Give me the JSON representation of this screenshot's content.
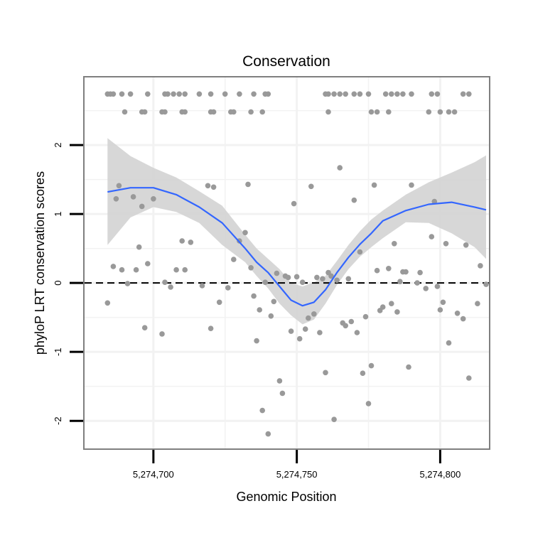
{
  "chart_data": {
    "type": "scatter",
    "title": "Conservation",
    "xlabel": "Genomic Position",
    "ylabel": "phyloP LRT conservation scores",
    "xlim": [
      5274676,
      5274817
    ],
    "ylim": [
      -2.4,
      2.98
    ],
    "x_ticks": [
      5274700,
      5274750,
      5274800
    ],
    "x_tick_labels": [
      "5,274,700",
      "5,274,750",
      "5,274,800"
    ],
    "y_ticks": [
      -2,
      -1,
      0,
      1,
      2
    ],
    "y_tick_labels": [
      "-2",
      "-1",
      "0",
      "1",
      "2"
    ],
    "grid": true,
    "reference_line": {
      "y": 0,
      "style": "dashed"
    },
    "colors": {
      "points": "#999999",
      "smooth": "#3366ff",
      "band": "#d3d3d3",
      "panel_border": "#7f7f7f",
      "grid": "#f2f2f2"
    },
    "series": [
      {
        "type": "points",
        "points": [
          [
            5274684,
            2.74
          ],
          [
            5274685,
            2.74
          ],
          [
            5274686,
            2.74
          ],
          [
            5274689,
            2.74
          ],
          [
            5274692,
            2.74
          ],
          [
            5274698,
            2.74
          ],
          [
            5274704,
            2.74
          ],
          [
            5274705,
            2.74
          ],
          [
            5274707,
            2.74
          ],
          [
            5274709,
            2.74
          ],
          [
            5274711,
            2.74
          ],
          [
            5274716,
            2.74
          ],
          [
            5274720,
            2.74
          ],
          [
            5274725,
            2.74
          ],
          [
            5274730,
            2.74
          ],
          [
            5274735,
            2.74
          ],
          [
            5274740,
            2.74
          ],
          [
            5274739,
            2.74
          ],
          [
            5274690,
            2.48
          ],
          [
            5274696,
            2.48
          ],
          [
            5274697,
            2.48
          ],
          [
            5274703,
            2.48
          ],
          [
            5274704,
            2.48
          ],
          [
            5274710,
            2.48
          ],
          [
            5274711,
            2.48
          ],
          [
            5274720,
            2.48
          ],
          [
            5274721,
            2.48
          ],
          [
            5274727,
            2.48
          ],
          [
            5274728,
            2.48
          ],
          [
            5274734,
            2.48
          ],
          [
            5274738,
            2.48
          ],
          [
            5274760,
            2.74
          ],
          [
            5274761,
            2.74
          ],
          [
            5274763,
            2.74
          ],
          [
            5274765,
            2.74
          ],
          [
            5274767,
            2.74
          ],
          [
            5274770,
            2.74
          ],
          [
            5274772,
            2.74
          ],
          [
            5274775,
            2.74
          ],
          [
            5274781,
            2.74
          ],
          [
            5274783,
            2.74
          ],
          [
            5274785,
            2.74
          ],
          [
            5274787,
            2.74
          ],
          [
            5274790,
            2.74
          ],
          [
            5274797,
            2.74
          ],
          [
            5274799,
            2.74
          ],
          [
            5274808,
            2.74
          ],
          [
            5274810,
            2.74
          ],
          [
            5274761,
            2.48
          ],
          [
            5274776,
            2.48
          ],
          [
            5274778,
            2.48
          ],
          [
            5274782,
            2.48
          ],
          [
            5274796,
            2.48
          ],
          [
            5274800,
            2.48
          ],
          [
            5274803,
            2.48
          ],
          [
            5274805,
            2.48
          ],
          [
            5274684,
            -0.29
          ],
          [
            5274686,
            0.24
          ],
          [
            5274687,
            1.22
          ],
          [
            5274688,
            1.41
          ],
          [
            5274689,
            0.19
          ],
          [
            5274691,
            -0.01
          ],
          [
            5274693,
            1.25
          ],
          [
            5274694,
            0.19
          ],
          [
            5274695,
            0.52
          ],
          [
            5274696,
            1.11
          ],
          [
            5274697,
            -0.65
          ],
          [
            5274698,
            0.28
          ],
          [
            5274700,
            1.22
          ],
          [
            5274703,
            -0.74
          ],
          [
            5274704,
            0.01
          ],
          [
            5274706,
            -0.06
          ],
          [
            5274708,
            0.19
          ],
          [
            5274710,
            0.61
          ],
          [
            5274711,
            0.19
          ],
          [
            5274713,
            0.59
          ],
          [
            5274717,
            -0.04
          ],
          [
            5274719,
            1.41
          ],
          [
            5274720,
            -0.66
          ],
          [
            5274721,
            1.39
          ],
          [
            5274723,
            -0.28
          ],
          [
            5274726,
            -0.07
          ],
          [
            5274728,
            0.34
          ],
          [
            5274730,
            0.61
          ],
          [
            5274732,
            0.73
          ],
          [
            5274733,
            1.43
          ],
          [
            5274734,
            0.22
          ],
          [
            5274735,
            -0.19
          ],
          [
            5274736,
            -0.84
          ],
          [
            5274737,
            -0.39
          ],
          [
            5274738,
            -1.85
          ],
          [
            5274739,
            0.01
          ],
          [
            5274740,
            -2.19
          ],
          [
            5274741,
            -0.48
          ],
          [
            5274742,
            -0.27
          ],
          [
            5274743,
            0.14
          ],
          [
            5274744,
            -1.42
          ],
          [
            5274745,
            -1.6
          ],
          [
            5274746,
            0.1
          ],
          [
            5274747,
            0.08
          ],
          [
            5274748,
            -0.7
          ],
          [
            5274749,
            1.15
          ],
          [
            5274750,
            0.09
          ],
          [
            5274751,
            -0.81
          ],
          [
            5274752,
            0.01
          ],
          [
            5274753,
            -0.67
          ],
          [
            5274754,
            -0.51
          ],
          [
            5274755,
            1.4
          ],
          [
            5274756,
            -0.45
          ],
          [
            5274757,
            0.08
          ],
          [
            5274758,
            -0.72
          ],
          [
            5274759,
            0.06
          ],
          [
            5274760,
            -1.3
          ],
          [
            5274761,
            0.15
          ],
          [
            5274762,
            0.1
          ],
          [
            5274763,
            -1.98
          ],
          [
            5274764,
            0.04
          ],
          [
            5274765,
            1.67
          ],
          [
            5274766,
            -0.58
          ],
          [
            5274767,
            -0.62
          ],
          [
            5274768,
            0.06
          ],
          [
            5274769,
            -0.56
          ],
          [
            5274770,
            1.2
          ],
          [
            5274771,
            -0.72
          ],
          [
            5274772,
            0.45
          ],
          [
            5274773,
            -1.31
          ],
          [
            5274774,
            -0.49
          ],
          [
            5274775,
            -1.75
          ],
          [
            5274776,
            -1.2
          ],
          [
            5274777,
            1.42
          ],
          [
            5274778,
            0.18
          ],
          [
            5274779,
            -0.4
          ],
          [
            5274780,
            -0.35
          ],
          [
            5274782,
            0.21
          ],
          [
            5274783,
            -0.3
          ],
          [
            5274784,
            0.57
          ],
          [
            5274785,
            -0.42
          ],
          [
            5274786,
            0.02
          ],
          [
            5274787,
            0.16
          ],
          [
            5274788,
            0.16
          ],
          [
            5274789,
            -1.22
          ],
          [
            5274790,
            1.42
          ],
          [
            5274792,
            0.0
          ],
          [
            5274793,
            0.15
          ],
          [
            5274795,
            -0.08
          ],
          [
            5274797,
            0.67
          ],
          [
            5274798,
            1.18
          ],
          [
            5274799,
            -0.05
          ],
          [
            5274800,
            -0.39
          ],
          [
            5274801,
            -0.28
          ],
          [
            5274802,
            0.57
          ],
          [
            5274803,
            -0.87
          ],
          [
            5274806,
            -0.44
          ],
          [
            5274808,
            -0.52
          ],
          [
            5274809,
            0.55
          ],
          [
            5274810,
            -1.38
          ],
          [
            5274813,
            -0.3
          ],
          [
            5274814,
            0.25
          ],
          [
            5274816,
            -0.02
          ]
        ]
      },
      {
        "type": "smooth",
        "x": [
          5274684,
          5274692,
          5274700,
          5274708,
          5274716,
          5274724,
          5274732,
          5274736,
          5274740,
          5274744,
          5274748,
          5274752,
          5274756,
          5274760,
          5274764,
          5274768,
          5274772,
          5274776,
          5274780,
          5274788,
          5274796,
          5274804,
          5274812,
          5274816
        ],
        "y": [
          1.32,
          1.38,
          1.38,
          1.28,
          1.1,
          0.87,
          0.5,
          0.3,
          0.15,
          -0.05,
          -0.25,
          -0.33,
          -0.28,
          -0.1,
          0.15,
          0.37,
          0.56,
          0.72,
          0.9,
          1.05,
          1.14,
          1.17,
          1.1,
          1.06
        ],
        "lower": [
          0.55,
          0.95,
          1.1,
          1.03,
          0.87,
          0.55,
          0.3,
          0.1,
          -0.08,
          -0.3,
          -0.47,
          -0.6,
          -0.53,
          -0.3,
          -0.03,
          0.2,
          0.38,
          0.52,
          0.65,
          0.88,
          0.87,
          0.72,
          0.52,
          0.35
        ],
        "upper": [
          2.1,
          1.84,
          1.67,
          1.53,
          1.33,
          1.12,
          0.7,
          0.5,
          0.35,
          0.2,
          0.0,
          -0.05,
          0.01,
          0.1,
          0.32,
          0.55,
          0.75,
          0.92,
          1.05,
          1.28,
          1.46,
          1.6,
          1.75,
          1.85
        ]
      }
    ]
  }
}
